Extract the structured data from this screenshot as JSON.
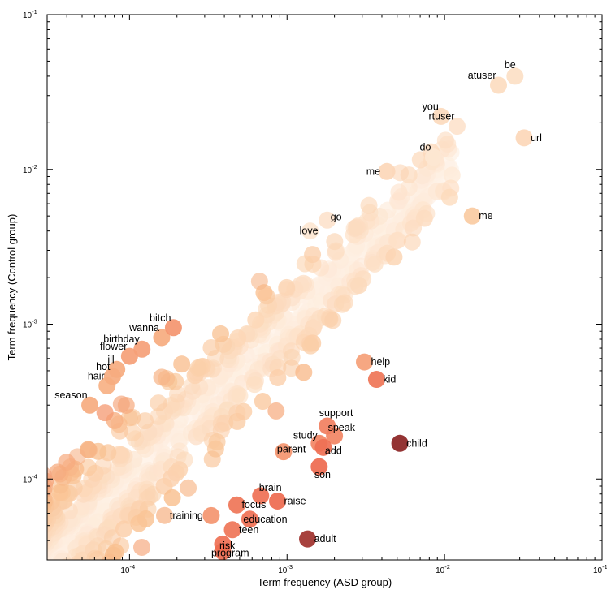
{
  "chart_data": {
    "type": "scatter",
    "title": "",
    "xlabel": "Term frequency (ASD group)",
    "ylabel": "Term frequency (Control group)",
    "xscale": "log",
    "yscale": "log",
    "xlim": [
      3e-05,
      0.1
    ],
    "ylim": [
      3e-05,
      0.1
    ],
    "x_ticks": [
      {
        "value": 0.0001,
        "base": "10",
        "exp": "-4"
      },
      {
        "value": 0.001,
        "base": "10",
        "exp": "-3"
      },
      {
        "value": 0.01,
        "base": "10",
        "exp": "-2"
      },
      {
        "value": 0.1,
        "base": "10",
        "exp": "-1"
      }
    ],
    "y_ticks": [
      {
        "value": 0.0001,
        "base": "10",
        "exp": "-4"
      },
      {
        "value": 0.001,
        "base": "10",
        "exp": "-3"
      },
      {
        "value": 0.01,
        "base": "10",
        "exp": "-2"
      },
      {
        "value": 0.1,
        "base": "10",
        "exp": "-1"
      }
    ],
    "colors": {
      "low": "#fff6ee",
      "mid": "#f9c08f",
      "high": "#ee6a4f",
      "max": "#8b2323"
    },
    "labeled_points": [
      {
        "label": "be",
        "x": 0.028,
        "y": 0.04,
        "c": 0.15
      },
      {
        "label": "atuser",
        "x": 0.022,
        "y": 0.035,
        "c": 0.17
      },
      {
        "label": "you",
        "x": 0.0095,
        "y": 0.022,
        "c": 0.18
      },
      {
        "label": "rtuser",
        "x": 0.012,
        "y": 0.019,
        "c": 0.12
      },
      {
        "label": "url",
        "x": 0.032,
        "y": 0.016,
        "c": 0.2
      },
      {
        "label": "do",
        "x": 0.0085,
        "y": 0.012,
        "c": 0.1
      },
      {
        "label": "me",
        "x": 0.0043,
        "y": 0.0097,
        "c": 0.2
      },
      {
        "label": "me",
        "x": 0.015,
        "y": 0.005,
        "c": 0.28
      },
      {
        "label": "go",
        "x": 0.0018,
        "y": 0.0047,
        "c": 0.12
      },
      {
        "label": "love",
        "x": 0.0014,
        "y": 0.004,
        "c": 0.1
      },
      {
        "label": "bitch",
        "x": 0.00019,
        "y": 0.00095,
        "c": 0.55
      },
      {
        "label": "wanna",
        "x": 0.00016,
        "y": 0.00082,
        "c": 0.45
      },
      {
        "label": "birthday",
        "x": 0.00012,
        "y": 0.00069,
        "c": 0.5
      },
      {
        "label": "flower",
        "x": 0.0001,
        "y": 0.00062,
        "c": 0.5
      },
      {
        "label": "ill",
        "x": 8.3e-05,
        "y": 0.00051,
        "c": 0.45
      },
      {
        "label": "hot",
        "x": 7.8e-05,
        "y": 0.00046,
        "c": 0.45
      },
      {
        "label": "hair",
        "x": 7.2e-05,
        "y": 0.0004,
        "c": 0.42
      },
      {
        "label": "season",
        "x": 5.6e-05,
        "y": 0.0003,
        "c": 0.45
      },
      {
        "label": "help",
        "x": 0.0031,
        "y": 0.00057,
        "c": 0.5
      },
      {
        "label": "kid",
        "x": 0.0037,
        "y": 0.00044,
        "c": 0.7
      },
      {
        "label": "support",
        "x": 0.0018,
        "y": 0.00022,
        "c": 0.65
      },
      {
        "label": "speak",
        "x": 0.002,
        "y": 0.00019,
        "c": 0.62
      },
      {
        "label": "study",
        "x": 0.0016,
        "y": 0.00017,
        "c": 0.62
      },
      {
        "label": "add",
        "x": 0.0017,
        "y": 0.00016,
        "c": 0.72
      },
      {
        "label": "child",
        "x": 0.0052,
        "y": 0.00017,
        "c": 1.0
      },
      {
        "label": "parent",
        "x": 0.00095,
        "y": 0.00015,
        "c": 0.55
      },
      {
        "label": "son",
        "x": 0.0016,
        "y": 0.00012,
        "c": 0.75
      },
      {
        "label": "brain",
        "x": 0.00068,
        "y": 7.8e-05,
        "c": 0.72
      },
      {
        "label": "raise",
        "x": 0.00087,
        "y": 7.2e-05,
        "c": 0.75
      },
      {
        "label": "focus",
        "x": 0.00048,
        "y": 6.8e-05,
        "c": 0.7
      },
      {
        "label": "training",
        "x": 0.00033,
        "y": 5.8e-05,
        "c": 0.55
      },
      {
        "label": "education",
        "x": 0.00058,
        "y": 5.5e-05,
        "c": 0.72
      },
      {
        "label": "teen",
        "x": 0.00045,
        "y": 4.7e-05,
        "c": 0.7
      },
      {
        "label": "adult",
        "x": 0.00135,
        "y": 4.1e-05,
        "c": 0.95
      },
      {
        "label": "risk",
        "x": 0.00039,
        "y": 3.8e-05,
        "c": 0.72
      },
      {
        "label": "program",
        "x": 0.00039,
        "y": 3.4e-05,
        "c": 0.75
      }
    ]
  }
}
